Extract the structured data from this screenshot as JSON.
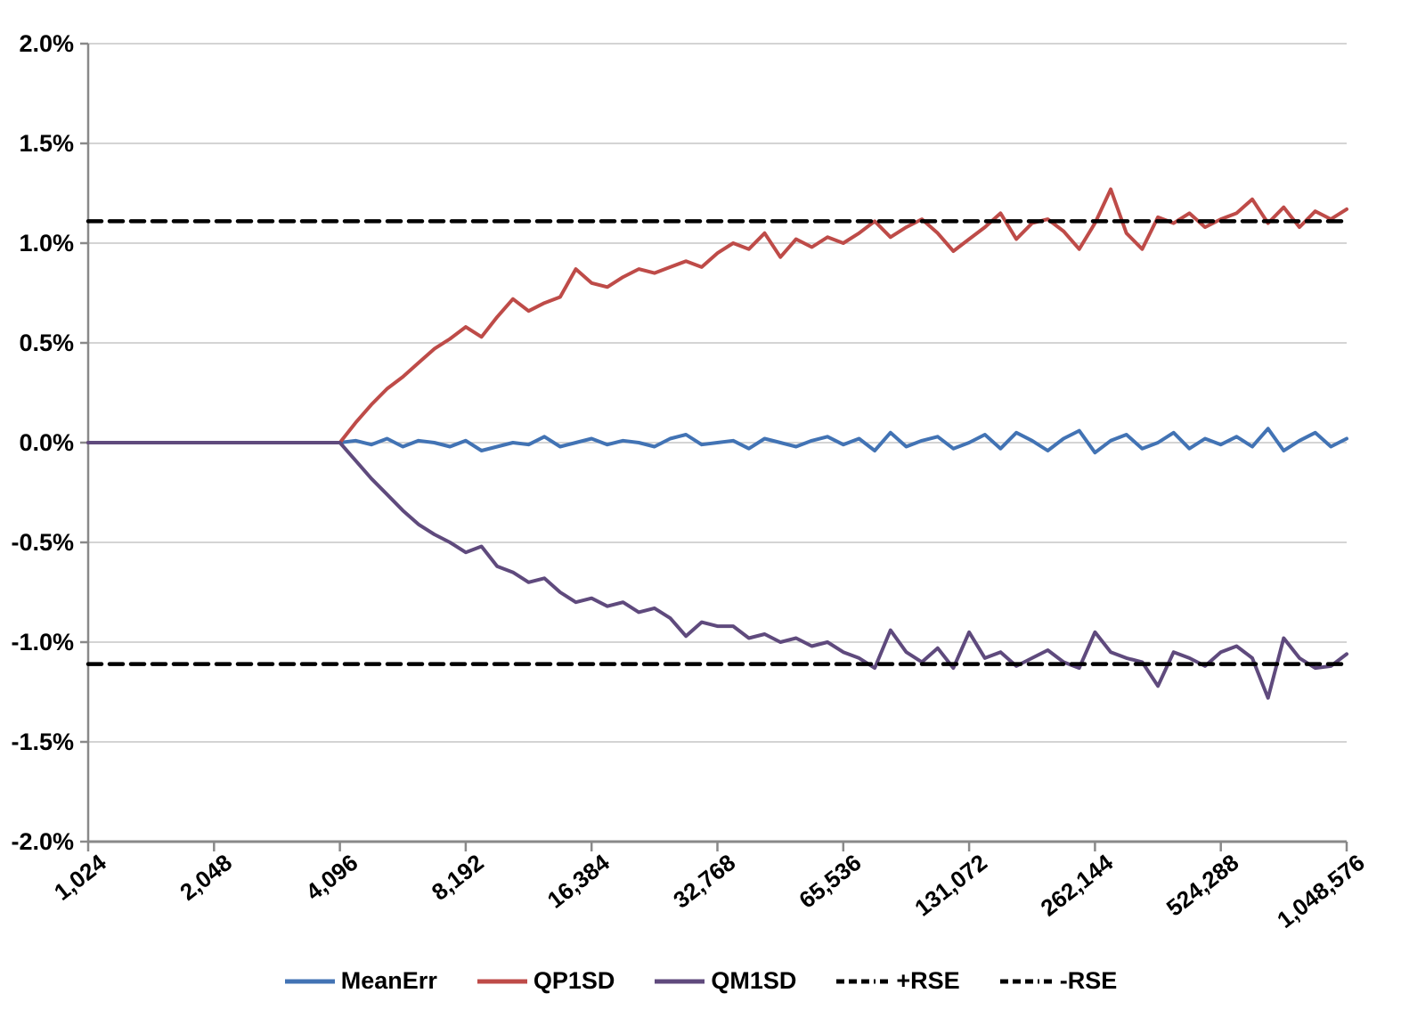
{
  "chart_data": {
    "type": "line",
    "title": "",
    "xlabel": "",
    "ylabel": "",
    "x_scale": "log2",
    "xlim": [
      1024,
      1048576
    ],
    "ylim": [
      -2.0,
      2.0
    ],
    "grid": "horizontal",
    "legend_position": "bottom",
    "rse_level_percent": 1.11,
    "y_ticks": [
      {
        "label": "2.0%",
        "value": 2.0
      },
      {
        "label": "1.5%",
        "value": 1.5
      },
      {
        "label": "1.0%",
        "value": 1.0
      },
      {
        "label": "0.5%",
        "value": 0.5
      },
      {
        "label": "0.0%",
        "value": 0.0
      },
      {
        "label": "-0.5%",
        "value": -0.5
      },
      {
        "label": "-1.0%",
        "value": -1.0
      },
      {
        "label": "-1.5%",
        "value": -1.5
      },
      {
        "label": "-2.0%",
        "value": -2.0
      }
    ],
    "x_ticks": [
      {
        "label": "1,024",
        "value": 1024
      },
      {
        "label": "2,048",
        "value": 2048
      },
      {
        "label": "4,096",
        "value": 4096
      },
      {
        "label": "8,192",
        "value": 8192
      },
      {
        "label": "16,384",
        "value": 16384
      },
      {
        "label": "32,768",
        "value": 32768
      },
      {
        "label": "65,536",
        "value": 65536
      },
      {
        "label": "131,072",
        "value": 131072
      },
      {
        "label": "262,144",
        "value": 262144
      },
      {
        "label": "524,288",
        "value": 524288
      },
      {
        "label": "1,048,576",
        "value": 1048576
      }
    ],
    "x": [
      1024,
      1448,
      2048,
      2896,
      4096,
      4467,
      4871,
      5312,
      5793,
      6317,
      6889,
      7512,
      8192,
      8933,
      9742,
      10624,
      11585,
      12634,
      13777,
      15024,
      16384,
      17867,
      19484,
      21247,
      23170,
      25268,
      27554,
      30048,
      32768,
      35734,
      38968,
      42495,
      46341,
      50535,
      55109,
      60097,
      65536,
      71468,
      77936,
      84990,
      92682,
      101070,
      110218,
      120194,
      131072,
      142935,
      155872,
      169980,
      185364,
      202141,
      220436,
      240388,
      262144,
      285870,
      311744,
      339959,
      370728,
      404281,
      440872,
      480776,
      524288,
      571741,
      623487,
      679918,
      741455,
      808563,
      881744,
      961561,
      1048576
    ],
    "series": [
      {
        "name": "MeanErr",
        "color": "#4273B4",
        "width": 4,
        "values": [
          0,
          0,
          0,
          0,
          0.0,
          0.01,
          -0.01,
          0.02,
          -0.02,
          0.01,
          0.0,
          -0.02,
          0.01,
          -0.04,
          -0.02,
          0.0,
          -0.01,
          0.03,
          -0.02,
          0.0,
          0.02,
          -0.01,
          0.01,
          0.0,
          -0.02,
          0.02,
          0.04,
          -0.01,
          0.0,
          0.01,
          -0.03,
          0.02,
          0.0,
          -0.02,
          0.01,
          0.03,
          -0.01,
          0.02,
          -0.04,
          0.05,
          -0.02,
          0.01,
          0.03,
          -0.03,
          0.0,
          0.04,
          -0.03,
          0.05,
          0.01,
          -0.04,
          0.02,
          0.06,
          -0.05,
          0.01,
          0.04,
          -0.03,
          0.0,
          0.05,
          -0.03,
          0.02,
          -0.01,
          0.03,
          -0.02,
          0.07,
          -0.04,
          0.01,
          0.05,
          -0.02,
          0.02
        ]
      },
      {
        "name": "QP1SD",
        "color": "#BE4B48",
        "width": 4,
        "values": [
          0,
          0,
          0,
          0,
          0.0,
          0.1,
          0.19,
          0.27,
          0.33,
          0.4,
          0.47,
          0.52,
          0.58,
          0.53,
          0.63,
          0.72,
          0.66,
          0.7,
          0.73,
          0.87,
          0.8,
          0.78,
          0.83,
          0.87,
          0.85,
          0.88,
          0.91,
          0.88,
          0.95,
          1.0,
          0.97,
          1.05,
          0.93,
          1.02,
          0.98,
          1.03,
          1.0,
          1.05,
          1.11,
          1.03,
          1.08,
          1.12,
          1.05,
          0.96,
          1.02,
          1.08,
          1.15,
          1.02,
          1.1,
          1.12,
          1.06,
          0.97,
          1.1,
          1.27,
          1.05,
          0.97,
          1.13,
          1.1,
          1.15,
          1.08,
          1.12,
          1.15,
          1.22,
          1.1,
          1.18,
          1.08,
          1.16,
          1.12,
          1.17
        ]
      },
      {
        "name": "QM1SD",
        "color": "#5F4A7D",
        "width": 4,
        "values": [
          0,
          0,
          0,
          0,
          0.0,
          -0.09,
          -0.18,
          -0.26,
          -0.34,
          -0.41,
          -0.46,
          -0.5,
          -0.55,
          -0.52,
          -0.62,
          -0.65,
          -0.7,
          -0.68,
          -0.75,
          -0.8,
          -0.78,
          -0.82,
          -0.8,
          -0.85,
          -0.83,
          -0.88,
          -0.97,
          -0.9,
          -0.92,
          -0.92,
          -0.98,
          -0.96,
          -1.0,
          -0.98,
          -1.02,
          -1.0,
          -1.05,
          -1.08,
          -1.13,
          -0.94,
          -1.05,
          -1.1,
          -1.03,
          -1.13,
          -0.95,
          -1.08,
          -1.05,
          -1.12,
          -1.08,
          -1.04,
          -1.1,
          -1.13,
          -0.95,
          -1.05,
          -1.08,
          -1.1,
          -1.22,
          -1.05,
          -1.08,
          -1.12,
          -1.05,
          -1.02,
          -1.08,
          -1.28,
          -0.98,
          -1.08,
          -1.13,
          -1.12,
          -1.06
        ]
      },
      {
        "name": "+RSE",
        "color": "#000000",
        "width": 4.5,
        "dash": "15 9",
        "legend_dash": "9 5 9 5 9 5 2 5",
        "constant": 1.11
      },
      {
        "name": "-RSE",
        "color": "#000000",
        "width": 4.5,
        "dash": "15 9",
        "legend_dash": "9 5 9 5 9 5 2 5",
        "constant": -1.11
      }
    ],
    "colors": {
      "gridline": "#C6C6C6",
      "axis": "#898989",
      "background": "#FFFFFF"
    }
  }
}
